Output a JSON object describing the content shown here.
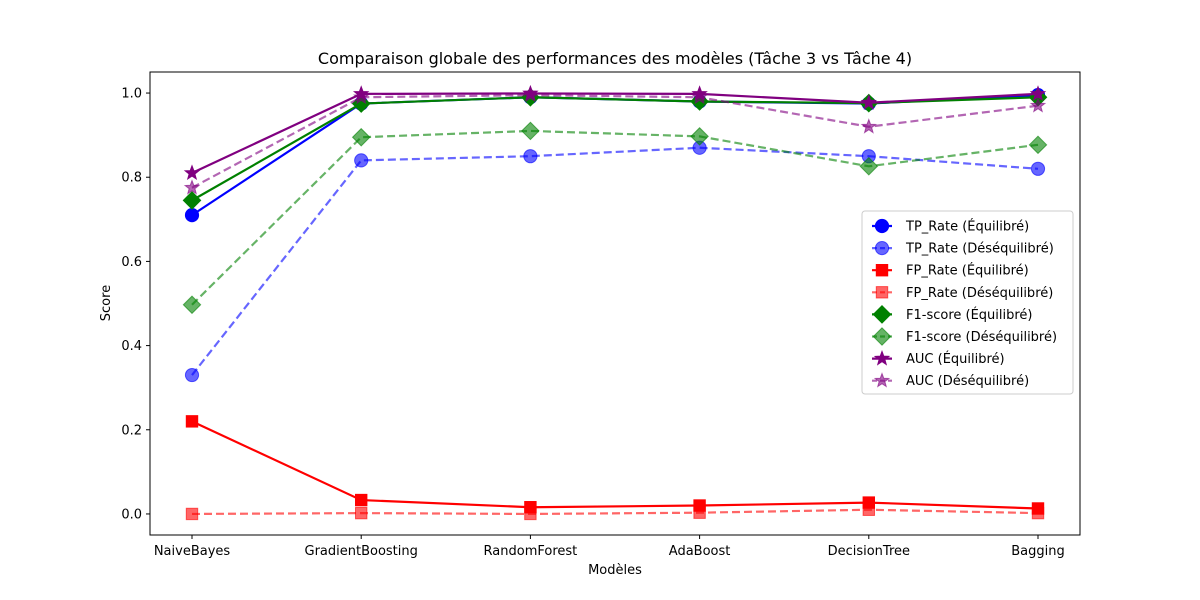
{
  "chart_data": {
    "type": "line",
    "title": "Comparaison globale des performances des modèles (Tâche 3 vs Tâche 4)",
    "xlabel": "Modèles",
    "ylabel": "Score",
    "categories": [
      "NaiveBayes",
      "GradientBoosting",
      "RandomForest",
      "AdaBoost",
      "DecisionTree",
      "Bagging"
    ],
    "ylim": [
      -0.05,
      1.05
    ],
    "yticks": [
      "0.0",
      "0.2",
      "0.4",
      "0.6",
      "0.8",
      "1.0"
    ],
    "grid": false,
    "legend_position": "center-right",
    "series": [
      {
        "name": "TP_Rate (Équilibré)",
        "color": "#0000ff",
        "style": "solid",
        "marker": "circle",
        "values": [
          0.71,
          0.975,
          0.99,
          0.98,
          0.975,
          0.995
        ]
      },
      {
        "name": "TP_Rate (Déséquilibré)",
        "color": "#0000ff",
        "style": "dashed",
        "marker": "circle",
        "values": [
          0.33,
          0.84,
          0.85,
          0.87,
          0.85,
          0.82
        ]
      },
      {
        "name": "FP_Rate (Équilibré)",
        "color": "#ff0000",
        "style": "solid",
        "marker": "square",
        "values": [
          0.22,
          0.033,
          0.016,
          0.02,
          0.027,
          0.013
        ]
      },
      {
        "name": "FP_Rate (Déséquilibré)",
        "color": "#ff0000",
        "style": "dashed",
        "marker": "square",
        "values": [
          0.0,
          0.002,
          0.0,
          0.003,
          0.01,
          0.002
        ]
      },
      {
        "name": "F1-score (Équilibré)",
        "color": "#008000",
        "style": "solid",
        "marker": "diamond",
        "values": [
          0.745,
          0.975,
          0.99,
          0.98,
          0.976,
          0.99
        ]
      },
      {
        "name": "F1-score (Déséquilibré)",
        "color": "#008000",
        "style": "dashed",
        "marker": "diamond",
        "values": [
          0.497,
          0.895,
          0.91,
          0.897,
          0.826,
          0.877
        ]
      },
      {
        "name": "AUC (Équilibré)",
        "color": "#800080",
        "style": "solid",
        "marker": "star",
        "values": [
          0.81,
          0.998,
          0.999,
          0.998,
          0.977,
          0.998
        ]
      },
      {
        "name": "AUC (Déséquilibré)",
        "color": "#800080",
        "style": "dashed",
        "marker": "star",
        "values": [
          0.775,
          0.99,
          0.995,
          0.99,
          0.92,
          0.97
        ]
      }
    ]
  }
}
